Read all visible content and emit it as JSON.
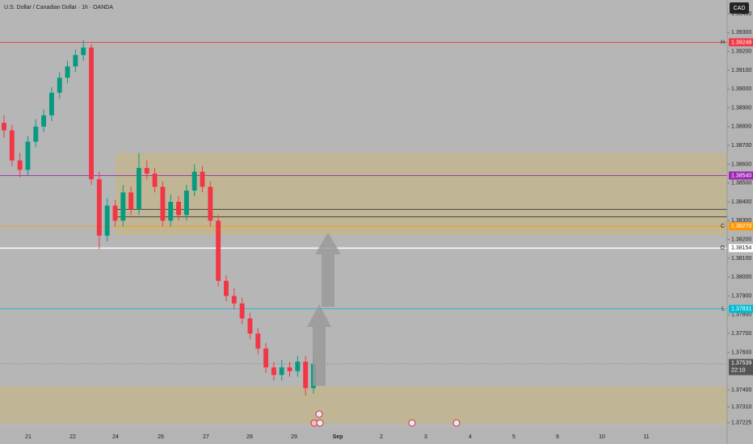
{
  "chart_data": {
    "type": "candlestick",
    "title": "U.S. Dollar / Canadian Dollar · 1h · OANDA",
    "currency": "CAD",
    "categories": [
      "21",
      "22",
      "24",
      "26",
      "27",
      "28",
      "29",
      "Sep",
      "2",
      "3",
      "4",
      "5",
      "9",
      "10",
      "11"
    ],
    "open": [
      1.3882,
      1.3878,
      1.3862,
      1.3857,
      1.3872,
      1.388,
      1.3886,
      1.3898,
      1.3906,
      1.3912,
      1.3918,
      1.3922,
      1.3852,
      1.3822,
      1.3838,
      1.383,
      1.3845,
      1.3836,
      1.3858,
      1.3855,
      1.3848,
      1.383,
      1.384,
      1.3833,
      1.3846,
      1.3856,
      1.3848,
      1.383,
      1.3798,
      1.379,
      1.3786,
      1.3778,
      1.377,
      1.3762,
      1.3752,
      1.3748,
      1.3752,
      1.375,
      1.3755,
      1.3741
    ],
    "high": [
      1.3886,
      1.3881,
      1.3866,
      1.3875,
      1.3884,
      1.3889,
      1.3901,
      1.3909,
      1.3915,
      1.3921,
      1.3926,
      1.3924,
      1.3856,
      1.3842,
      1.3841,
      1.3849,
      1.3848,
      1.3866,
      1.3862,
      1.3858,
      1.3851,
      1.3844,
      1.3843,
      1.3849,
      1.386,
      1.3859,
      1.3851,
      1.3833,
      1.3801,
      1.3794,
      1.3789,
      1.3781,
      1.3773,
      1.3765,
      1.3755,
      1.3756,
      1.3755,
      1.3758,
      1.3758,
      1.3757
    ],
    "low": [
      1.3874,
      1.3859,
      1.3853,
      1.3854,
      1.3869,
      1.3877,
      1.3883,
      1.3895,
      1.3903,
      1.3909,
      1.3915,
      1.3849,
      1.3815,
      1.3819,
      1.3827,
      1.3827,
      1.3833,
      1.3833,
      1.3852,
      1.3845,
      1.3827,
      1.3827,
      1.383,
      1.383,
      1.3843,
      1.3845,
      1.3827,
      1.3795,
      1.3787,
      1.3783,
      1.3775,
      1.3767,
      1.3759,
      1.3749,
      1.3745,
      1.3745,
      1.3747,
      1.3747,
      1.3737,
      1.3738
    ],
    "close": [
      1.3878,
      1.3862,
      1.3857,
      1.3872,
      1.388,
      1.3886,
      1.3898,
      1.3906,
      1.3912,
      1.3918,
      1.3922,
      1.3852,
      1.3822,
      1.3838,
      1.383,
      1.3845,
      1.3836,
      1.3858,
      1.3855,
      1.3848,
      1.383,
      1.384,
      1.3833,
      1.3846,
      1.3856,
      1.3848,
      1.383,
      1.3798,
      1.379,
      1.3786,
      1.3778,
      1.377,
      1.3762,
      1.3752,
      1.3748,
      1.3752,
      1.375,
      1.3755,
      1.3741,
      1.37539
    ],
    "up_color": "#089981",
    "down_color": "#f23645",
    "ylim": [
      1.3719,
      1.39473
    ],
    "yticks": [
      {
        "value": 1.394,
        "label": "1.39400"
      },
      {
        "value": 1.393,
        "label": "1.39300"
      },
      {
        "value": 1.392,
        "label": "1.39200"
      },
      {
        "value": 1.391,
        "label": "1.39100"
      },
      {
        "value": 1.39,
        "label": "1.39000"
      },
      {
        "value": 1.389,
        "label": "1.38900"
      },
      {
        "value": 1.388,
        "label": "1.38800"
      },
      {
        "value": 1.387,
        "label": "1.38700"
      },
      {
        "value": 1.386,
        "label": "1.38600"
      },
      {
        "value": 1.385,
        "label": "1.38500"
      },
      {
        "value": 1.384,
        "label": "1.38400"
      },
      {
        "value": 1.383,
        "label": "1.38300"
      },
      {
        "value": 1.382,
        "label": "1.38200"
      },
      {
        "value": 1.381,
        "label": "1.38100"
      },
      {
        "value": 1.38,
        "label": "1.38000"
      },
      {
        "value": 1.379,
        "label": "1.37900"
      },
      {
        "value": 1.378,
        "label": "1.37800"
      },
      {
        "value": 1.377,
        "label": "1.37700"
      },
      {
        "value": 1.376,
        "label": "1.37600"
      },
      {
        "value": 1.374,
        "label": "1.37400"
      },
      {
        "value": 1.3731,
        "label": "1.37310"
      },
      {
        "value": 1.37225,
        "label": "1.37225"
      }
    ],
    "levels": [
      {
        "label": "H",
        "value": 1.39248,
        "color": "#f23645"
      },
      {
        "value": 1.3854,
        "value_label": "1.38540",
        "color": "#9c27b0"
      },
      {
        "label": "C",
        "value": 1.3827,
        "value_label": "1.38270",
        "color": "#ff9800"
      },
      {
        "label": "O",
        "value": 1.38154,
        "color": "#ffffff"
      },
      {
        "label": "L",
        "value": 1.37831,
        "color": "#00bcd4"
      }
    ],
    "last_price": 1.37539,
    "countdown": "22:10",
    "zones": [
      {
        "top": 1.3866,
        "bottom": 1.3822
      },
      {
        "top": 1.3742,
        "bottom": 1.3722
      }
    ],
    "lines": [
      1.3836,
      1.3832
    ]
  }
}
